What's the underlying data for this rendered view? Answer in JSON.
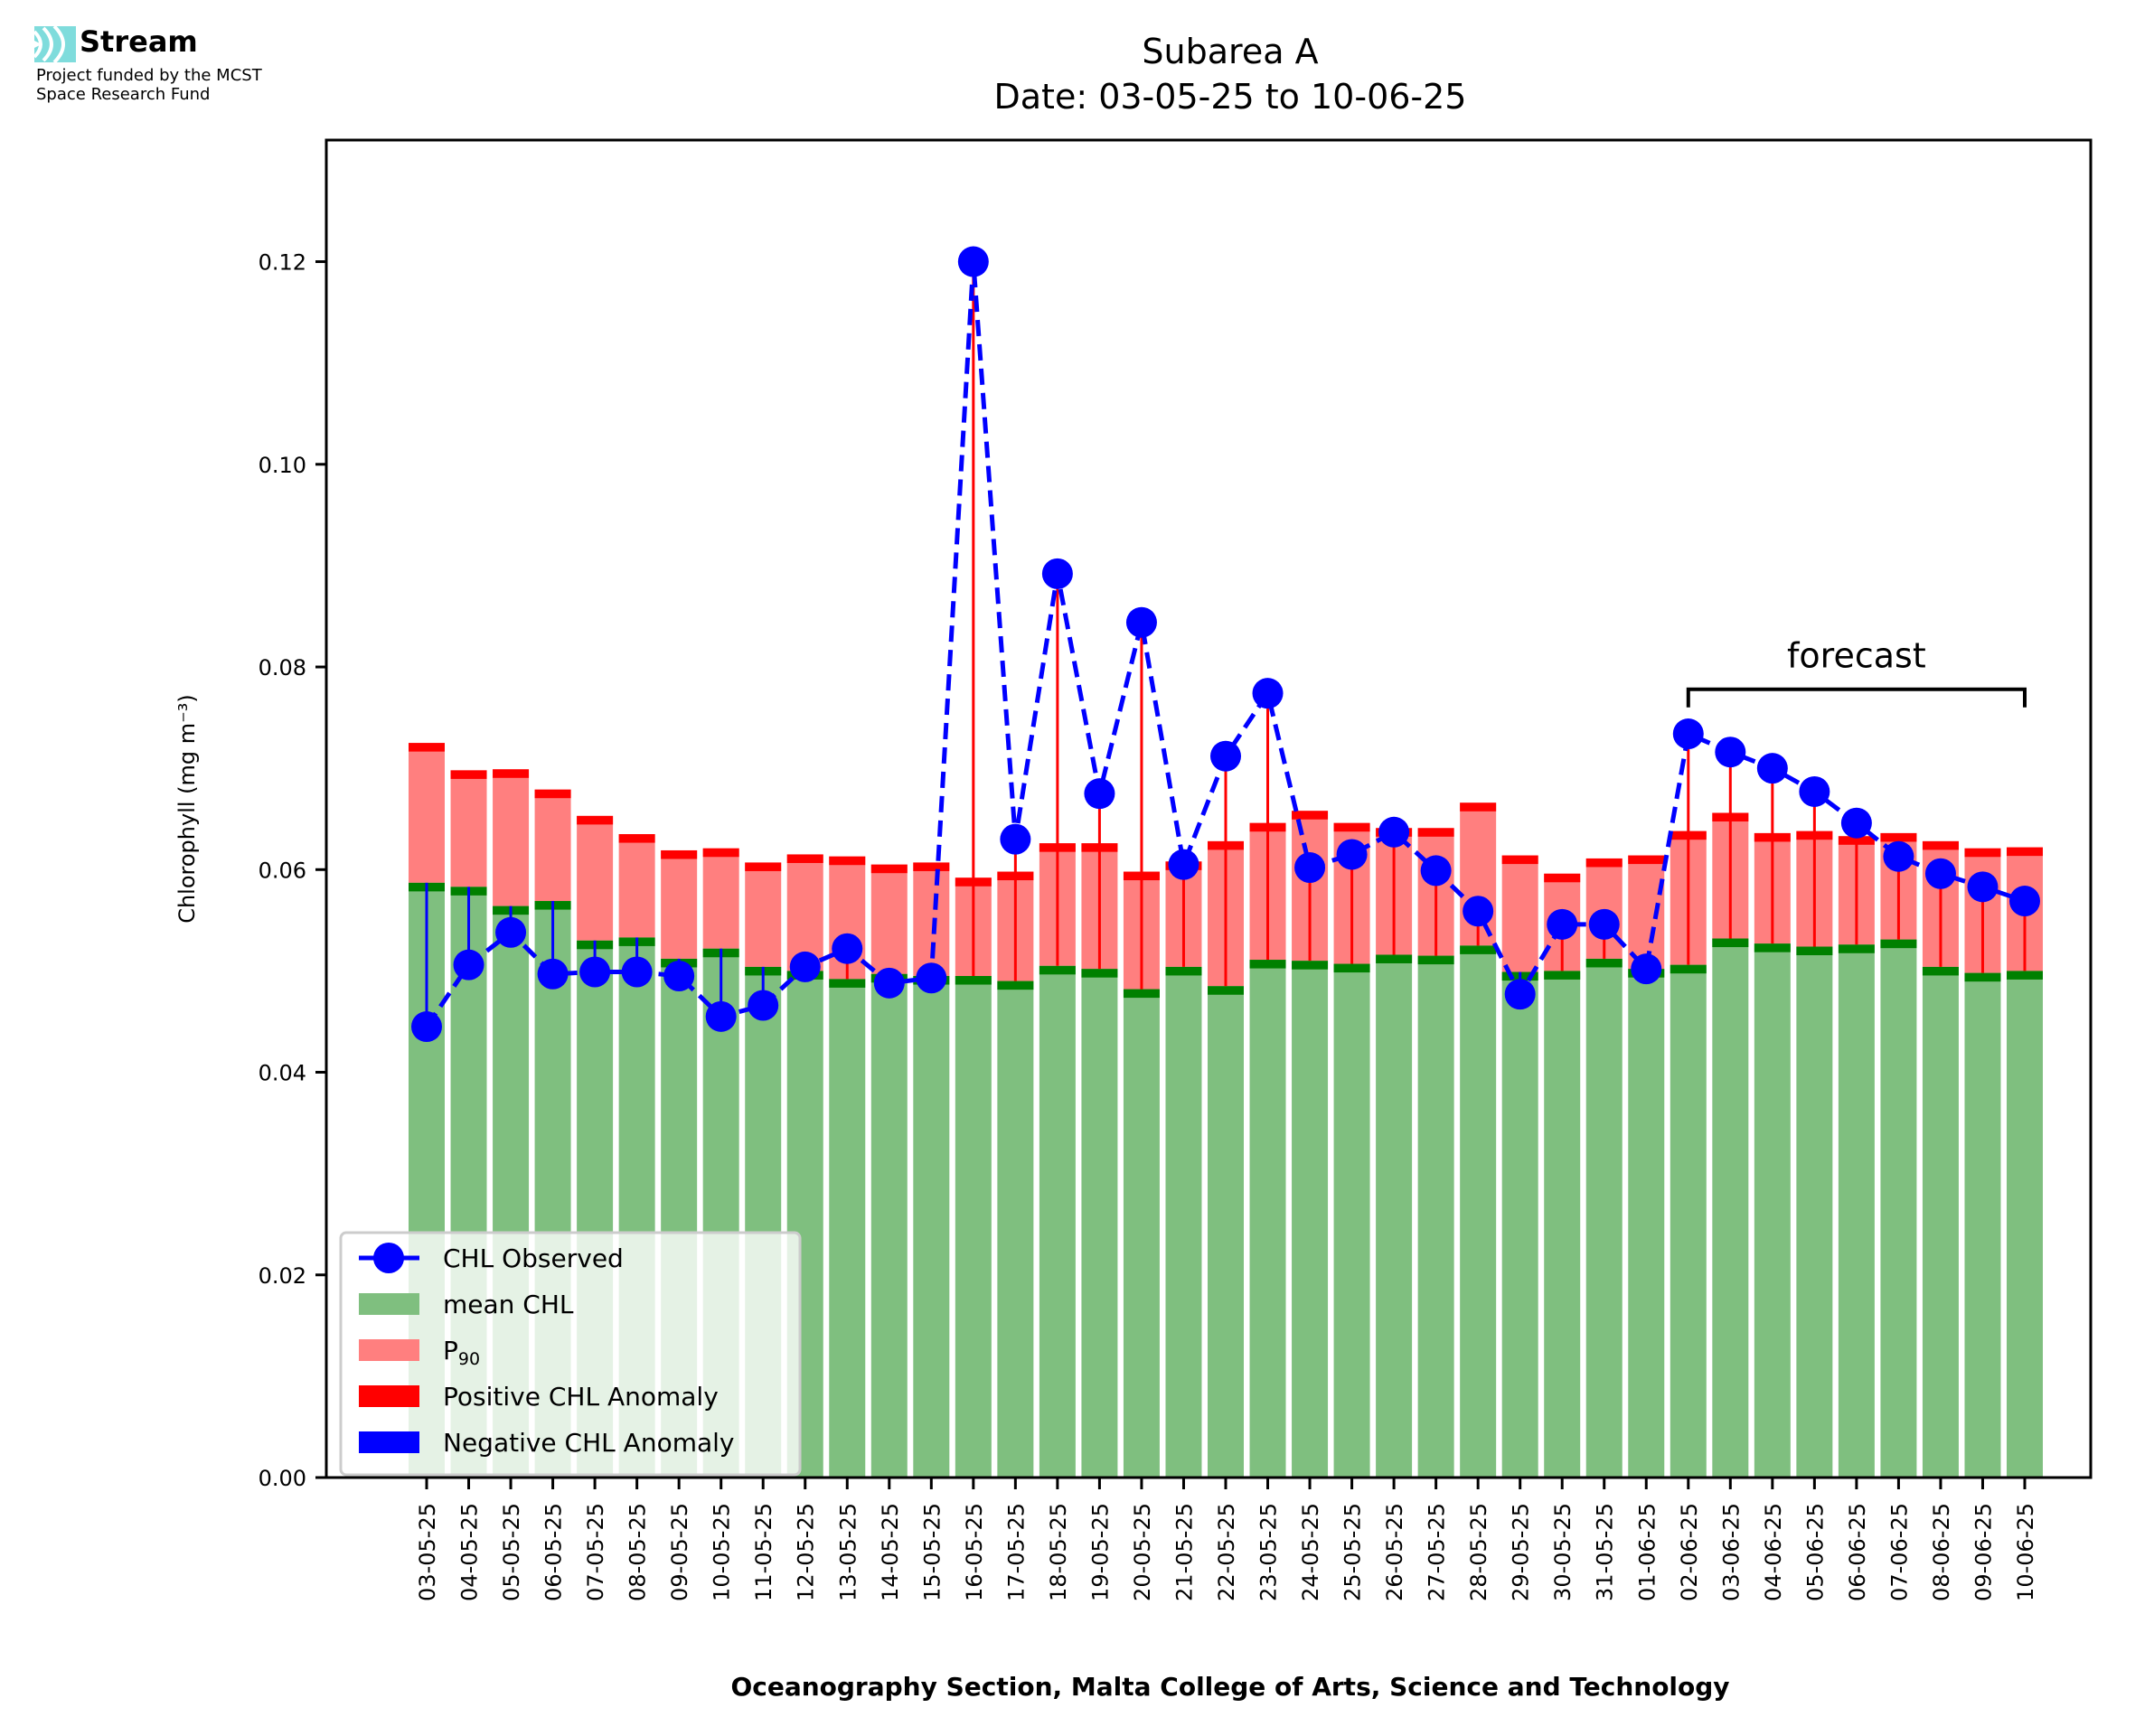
{
  "logo": {
    "brand": "Stream",
    "line1": "Project funded by the MCST",
    "line2": "Space Research Fund",
    "icon": "stream-waves-icon",
    "icon_color": "#7fdcdc"
  },
  "chart_data": {
    "type": "bar",
    "title": "Subarea A",
    "subtitle": "Date: 03-05-25 to 10-06-25",
    "xlabel": "Oceanography Section, Malta College of Arts, Science and Technology",
    "ylabel": "Chlorophyll (mg m⁻³)",
    "ylim": [
      0,
      0.132
    ],
    "yticks": [
      "0.00",
      "0.02",
      "0.04",
      "0.06",
      "0.08",
      "0.10",
      "0.12"
    ],
    "ytick_values": [
      0,
      0.02,
      0.04,
      0.06,
      0.08,
      0.1,
      0.12
    ],
    "grid": false,
    "legend_position": "lower-left",
    "categories": [
      "03-05-25",
      "04-05-25",
      "05-05-25",
      "06-05-25",
      "07-05-25",
      "08-05-25",
      "09-05-25",
      "10-05-25",
      "11-05-25",
      "12-05-25",
      "13-05-25",
      "14-05-25",
      "15-05-25",
      "16-05-25",
      "17-05-25",
      "18-05-25",
      "19-05-25",
      "20-05-25",
      "21-05-25",
      "22-05-25",
      "23-05-25",
      "24-05-25",
      "25-05-25",
      "26-05-25",
      "27-05-25",
      "28-05-25",
      "29-05-25",
      "30-05-25",
      "31-05-25",
      "01-06-25",
      "02-06-25",
      "03-06-25",
      "04-06-25",
      "05-06-25",
      "06-06-25",
      "07-06-25",
      "08-06-25",
      "09-06-25",
      "10-06-25"
    ],
    "series": [
      {
        "name": "mean CHL",
        "kind": "bar",
        "color": "#7fbf7f",
        "values": [
          0.0587,
          0.0583,
          0.0564,
          0.0569,
          0.053,
          0.0533,
          0.0512,
          0.0522,
          0.0504,
          0.05,
          0.0492,
          0.0497,
          0.0495,
          0.0495,
          0.049,
          0.0505,
          0.0502,
          0.0482,
          0.0504,
          0.0485,
          0.0511,
          0.051,
          0.0507,
          0.0516,
          0.0515,
          0.0525,
          0.0499,
          0.05,
          0.0512,
          0.0502,
          0.0506,
          0.0532,
          0.0527,
          0.0524,
          0.0526,
          0.0531,
          0.0504,
          0.0498,
          0.05
        ]
      },
      {
        "name": "P₉₀",
        "kind": "bar",
        "color": "#ff7f7f",
        "values": [
          0.0725,
          0.0698,
          0.0699,
          0.0679,
          0.0653,
          0.0635,
          0.0619,
          0.0621,
          0.0607,
          0.0615,
          0.0613,
          0.0605,
          0.0607,
          0.0592,
          0.0598,
          0.0626,
          0.0626,
          0.0598,
          0.0608,
          0.0628,
          0.0646,
          0.0658,
          0.0646,
          0.0641,
          0.0641,
          0.0666,
          0.0614,
          0.0596,
          0.0611,
          0.0614,
          0.0638,
          0.0656,
          0.0636,
          0.0638,
          0.0633,
          0.0636,
          0.0628,
          0.0621,
          0.0622
        ]
      },
      {
        "name": "CHL Observed",
        "kind": "line",
        "color": "#0000ff",
        "values": [
          0.0445,
          0.0506,
          0.0538,
          0.0497,
          0.0499,
          0.0499,
          0.0495,
          0.0455,
          0.0466,
          0.0504,
          0.0522,
          0.0488,
          0.0493,
          0.12,
          0.063,
          0.0892,
          0.0675,
          0.0844,
          0.0605,
          0.0712,
          0.0774,
          0.0602,
          0.0615,
          0.0637,
          0.0599,
          0.0559,
          0.0477,
          0.0546,
          0.0546,
          0.0502,
          0.0734,
          0.0716,
          0.07,
          0.0677,
          0.0646,
          0.0613,
          0.0596,
          0.0583,
          0.0569
        ]
      }
    ],
    "legend": [
      {
        "label": "CHL Observed",
        "kind": "line-marker",
        "color": "#0000ff"
      },
      {
        "label": "mean CHL",
        "kind": "patch",
        "color": "#7fbf7f"
      },
      {
        "label": "P",
        "sub": "90",
        "kind": "patch",
        "color": "#ff7f7f"
      },
      {
        "label": "Positive CHL Anomaly",
        "kind": "patch",
        "color": "#ff0000"
      },
      {
        "label": "Negative CHL Anomaly",
        "kind": "patch",
        "color": "#0000ff"
      }
    ],
    "annotation": {
      "text": "forecast",
      "from": "02-06-25",
      "to": "10-06-25"
    },
    "colors": {
      "mean_cap": "#008000",
      "p90_cap": "#ff0000",
      "positive": "#ff0000",
      "negative": "#0000ff"
    }
  }
}
